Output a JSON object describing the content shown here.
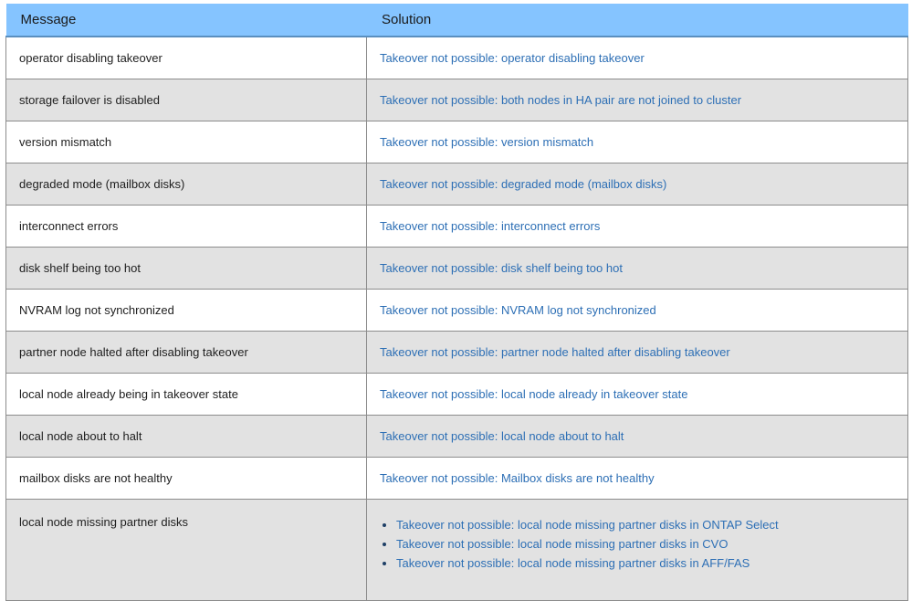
{
  "headers": {
    "message": "Message",
    "solution": "Solution"
  },
  "rows": [
    {
      "message": "operator disabling takeover",
      "solution": "Takeover not possible: operator disabling takeover"
    },
    {
      "message": "storage failover is disabled",
      "solution": "Takeover not possible: both nodes in HA pair are not joined to cluster"
    },
    {
      "message": "version mismatch",
      "solution": "Takeover not possible: version mismatch"
    },
    {
      "message": "degraded mode (mailbox disks)",
      "solution": "Takeover not possible: degraded mode (mailbox disks)"
    },
    {
      "message": "interconnect errors",
      "solution": "Takeover not possible: interconnect errors"
    },
    {
      "message": "disk shelf being too hot",
      "solution": "Takeover not possible: disk shelf being too hot"
    },
    {
      "message": "NVRAM log not synchronized",
      "solution": "Takeover not possible: NVRAM log not synchronized"
    },
    {
      "message": "partner node halted after disabling takeover",
      "solution": "Takeover not possible: partner node halted after disabling takeover"
    },
    {
      "message": "local node already being in takeover state",
      "solution": "Takeover not possible: local node already in takeover state"
    },
    {
      "message": "local node about to halt",
      "solution": "Takeover not possible: local node about to halt"
    },
    {
      "message": "mailbox disks are not healthy",
      "solution": "Takeover not possible: Mailbox disks are not healthy"
    }
  ],
  "last_row": {
    "message": "local node missing partner disks",
    "solutions": [
      "Takeover not possible: local node missing partner disks in ONTAP Select",
      "Takeover not possible: local node missing partner disks in CVO",
      "Takeover not possible: local node missing partner disks in AFF/FAS"
    ]
  },
  "colors": {
    "header_bg": "#85c4ff",
    "link": "#2d6fb5",
    "stripe": "#e2e2e2"
  }
}
